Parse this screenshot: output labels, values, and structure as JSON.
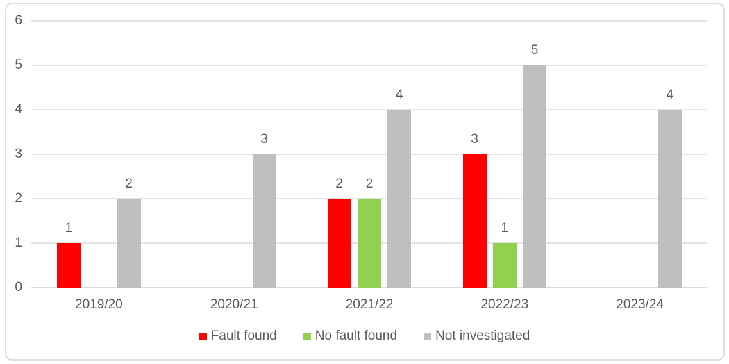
{
  "chart_data": {
    "type": "bar",
    "title": "",
    "xlabel": "",
    "ylabel": "",
    "categories": [
      "2019/20",
      "2020/21",
      "2021/22",
      "2022/23",
      "2023/24"
    ],
    "series": [
      {
        "name": "Fault found",
        "color": "#ff0000",
        "values": [
          1,
          0,
          2,
          3,
          0
        ]
      },
      {
        "name": "No fault found",
        "color": "#92d050",
        "values": [
          0,
          0,
          2,
          1,
          0
        ]
      },
      {
        "name": "Not investigated",
        "color": "#bfbfbf",
        "values": [
          2,
          3,
          4,
          5,
          4
        ]
      }
    ],
    "ylim": [
      0,
      6
    ],
    "yticks": [
      0,
      1,
      2,
      3,
      4,
      5,
      6
    ],
    "grid": true,
    "data_labels": true,
    "legend_position": "bottom"
  },
  "style": {
    "background": "#ffffff",
    "text_color": "#595959",
    "gridline_color": "#e3e3e3",
    "axis_line_color": "#dadada",
    "border_color": "#dedede"
  }
}
